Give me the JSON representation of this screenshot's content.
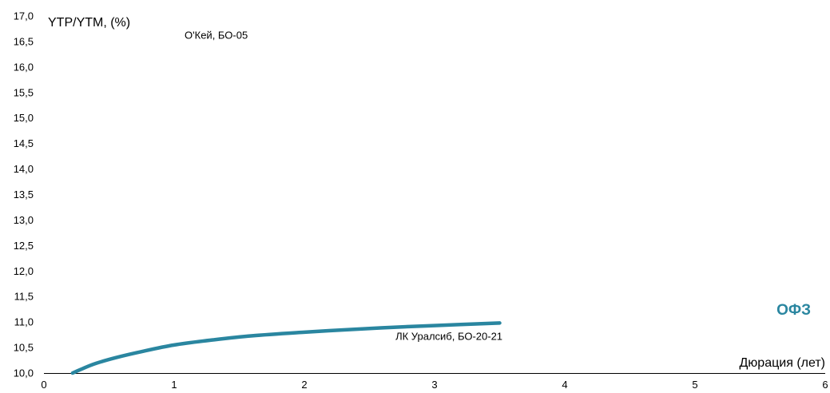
{
  "chart_data": {
    "type": "line",
    "xlabel": "Дюрация (лет)",
    "ylabel": "YTP/YTM, (%)",
    "xlim": [
      0,
      6
    ],
    "ylim": [
      10.0,
      17.0
    ],
    "x_ticks": [
      0,
      1,
      2,
      3,
      4,
      5,
      6
    ],
    "x_tick_labels": [
      "0",
      "1",
      "2",
      "3",
      "4",
      "5",
      "6"
    ],
    "y_ticks": [
      10.0,
      10.5,
      11.0,
      11.5,
      12.0,
      12.5,
      13.0,
      13.5,
      14.0,
      14.5,
      15.0,
      15.5,
      16.0,
      16.5,
      17.0
    ],
    "y_tick_labels": [
      "10,0",
      "10,5",
      "11,0",
      "11,5",
      "12,0",
      "12,5",
      "13,0",
      "13,5",
      "14,0",
      "14,5",
      "15,0",
      "15,5",
      "16,0",
      "16,5",
      "17,0"
    ],
    "grid": false,
    "series": [
      {
        "name": "ОФЗ",
        "color": "#2a86a0",
        "x": [
          0.22,
          0.3,
          0.4,
          0.55,
          0.75,
          1.0,
          1.3,
          1.6,
          2.0,
          2.4,
          2.8,
          3.2,
          3.5
        ],
        "values": [
          10.0,
          10.09,
          10.19,
          10.3,
          10.42,
          10.55,
          10.65,
          10.73,
          10.8,
          10.86,
          10.91,
          10.95,
          10.98
        ]
      }
    ],
    "annotations": [
      {
        "text": "О'Кей, БО-05",
        "x": 1.08,
        "y": 16.55
      },
      {
        "text": "ЛК Уралсиб, БО-20-21",
        "x": 2.7,
        "y": 10.65
      }
    ]
  }
}
